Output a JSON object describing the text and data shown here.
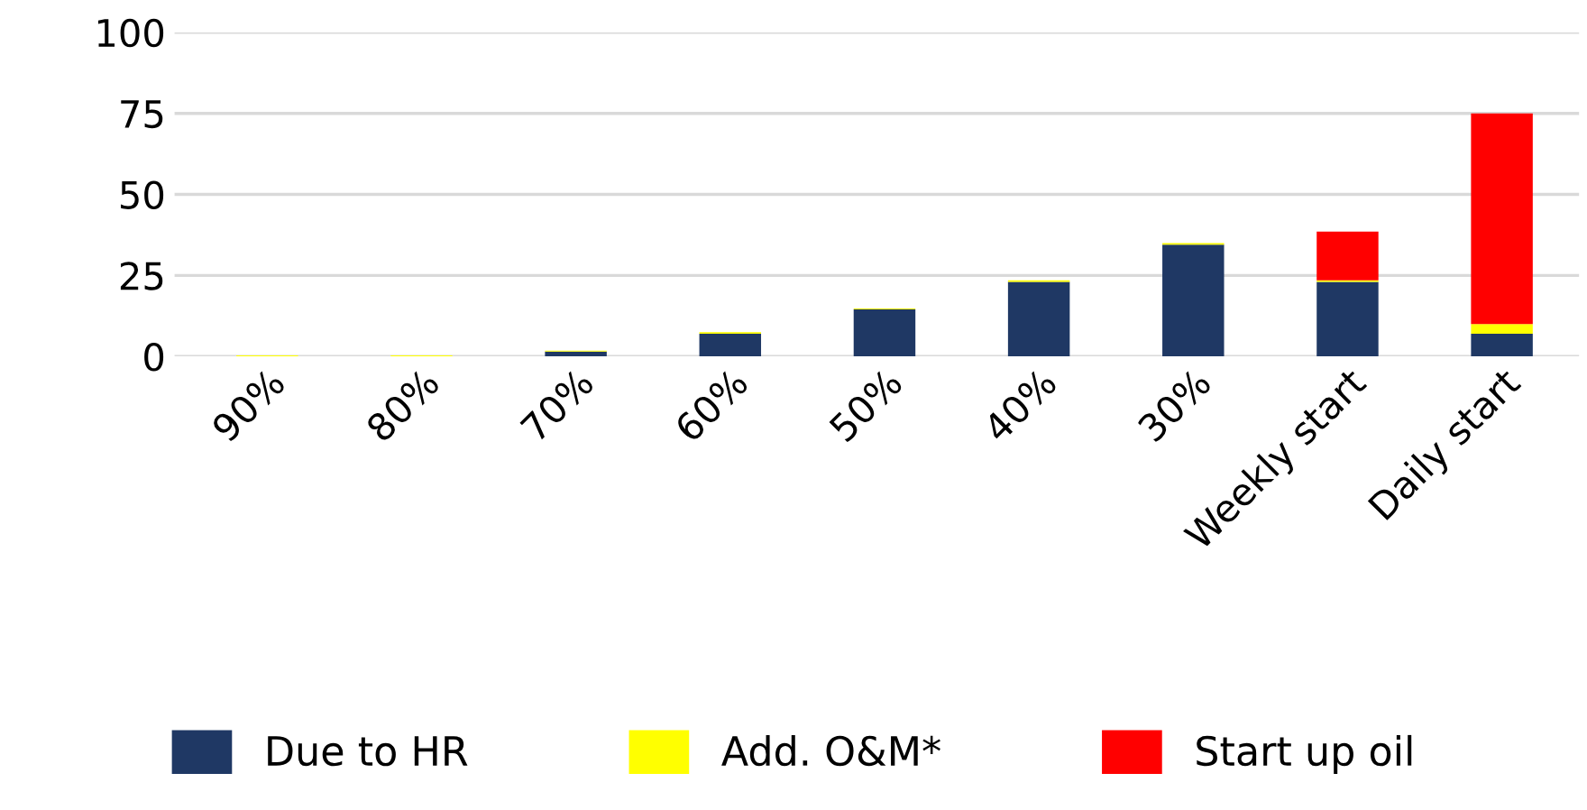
{
  "chart_data": {
    "type": "bar",
    "stacked": true,
    "categories": [
      "90%",
      "80%",
      "70%",
      "60%",
      "50%",
      "40%",
      "30%",
      "Weekly start",
      "Daily start"
    ],
    "series": [
      {
        "name": "Due to HR",
        "color": "#1f3864",
        "values": [
          0,
          0,
          1.5,
          7,
          14.5,
          23,
          34.5,
          23,
          7
        ]
      },
      {
        "name": "Add. O&M*",
        "color": "#ffff00",
        "values": [
          0.3,
          0.3,
          0.3,
          0.5,
          0.3,
          0.5,
          0.5,
          0.5,
          3
        ]
      },
      {
        "name": "Start up oil",
        "color": "#ff0000",
        "values": [
          0,
          0,
          0,
          0,
          0,
          0,
          0,
          15,
          65
        ]
      }
    ],
    "ylim": [
      0,
      100
    ],
    "yticks": [
      0,
      25,
      50,
      75,
      100
    ],
    "grid": "y",
    "legend": "bottom"
  }
}
